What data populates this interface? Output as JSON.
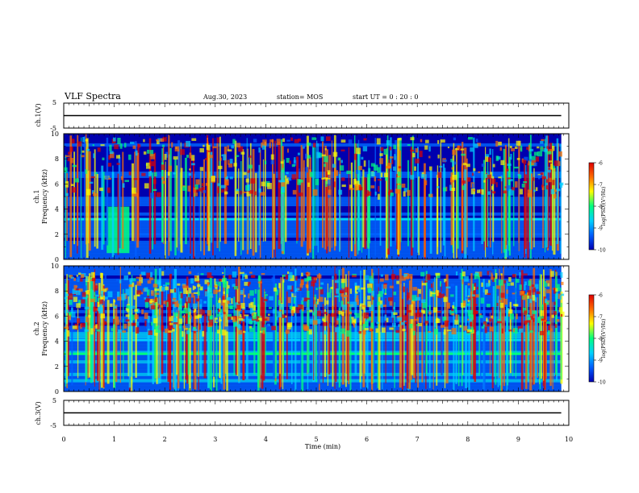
{
  "header": {
    "title": "VLF Spectra",
    "date": "Aug.30, 2023",
    "station": "station= MOS",
    "start": "start  UT =   0 : 20 : 0"
  },
  "chart_data": [
    {
      "type": "line",
      "panel": "ch1-waveform",
      "xlabel": "Time (min)",
      "ylabel": "ch.1(V)",
      "xlim": [
        0,
        10
      ],
      "ylim": [
        -5,
        5
      ],
      "yticks": [
        "5",
        "-5"
      ],
      "series": [
        {
          "x": [
            0,
            9.85
          ],
          "values": [
            0,
            0
          ]
        }
      ],
      "color": "#000000"
    },
    {
      "type": "heatmap",
      "panel": "ch1-spectrogram",
      "xlabel": "Time (min)",
      "ylabel": "ch.1 Frequency (kHz)",
      "xlim": [
        0,
        10
      ],
      "ylim": [
        0,
        10
      ],
      "yticks": [
        "0",
        "2",
        "4",
        "6",
        "8",
        "10"
      ],
      "colorbar": {
        "label": "log(PSD)(V²/Hz)",
        "ticks": [
          "-6",
          "-7",
          "-8",
          "-9",
          "-10"
        ],
        "range": [
          -10,
          -6
        ],
        "colors": [
          "#0000b4",
          "#0060ff",
          "#00d0ff",
          "#00ff80",
          "#ffff00",
          "#ff7000",
          "#e00000"
        ]
      },
      "data_extent_min": 9.85,
      "features": [
        {
          "kind": "band",
          "freq_khz": 3.2,
          "level": -8.3
        },
        {
          "kind": "band",
          "freq_khz": 2.0,
          "level": -8.9
        },
        {
          "kind": "burst",
          "t_min": [
            0.85,
            1.3
          ],
          "freq_khz": [
            0.5,
            4.2
          ],
          "level": -8.0
        }
      ]
    },
    {
      "type": "heatmap",
      "panel": "ch2-spectrogram",
      "xlabel": "Time (min)",
      "ylabel": "ch.2 Frequency (kHz)",
      "xlim": [
        0,
        10
      ],
      "ylim": [
        0,
        10
      ],
      "yticks": [
        "0",
        "2",
        "4",
        "6",
        "8",
        "10"
      ],
      "colorbar": {
        "label": "log(PSD)(V²/Hz)",
        "ticks": [
          "-6",
          "-7",
          "-8",
          "-9",
          "-10"
        ],
        "range": [
          -10,
          -6
        ],
        "colors": [
          "#0000b4",
          "#0060ff",
          "#00d0ff",
          "#00ff80",
          "#ffff00",
          "#ff7000",
          "#e00000"
        ]
      },
      "data_extent_min": 9.85,
      "features": [
        {
          "kind": "band",
          "freq_khz": 3.0,
          "level": -7.8
        },
        {
          "kind": "band",
          "freq_khz": 4.1,
          "level": -8.5
        }
      ]
    },
    {
      "type": "line",
      "panel": "ch3-waveform",
      "xlabel": "Time (min)",
      "ylabel": "ch.3(V)",
      "xlim": [
        0,
        10
      ],
      "ylim": [
        -5,
        5
      ],
      "yticks": [
        "5",
        "-5"
      ],
      "series": [
        {
          "x": [
            0,
            9.85
          ],
          "values": [
            0,
            0
          ]
        }
      ],
      "color": "#000000"
    }
  ],
  "xaxis": {
    "label": "Time (min)",
    "ticks": [
      "0",
      "1",
      "2",
      "3",
      "4",
      "5",
      "6",
      "7",
      "8",
      "9",
      "10"
    ]
  }
}
